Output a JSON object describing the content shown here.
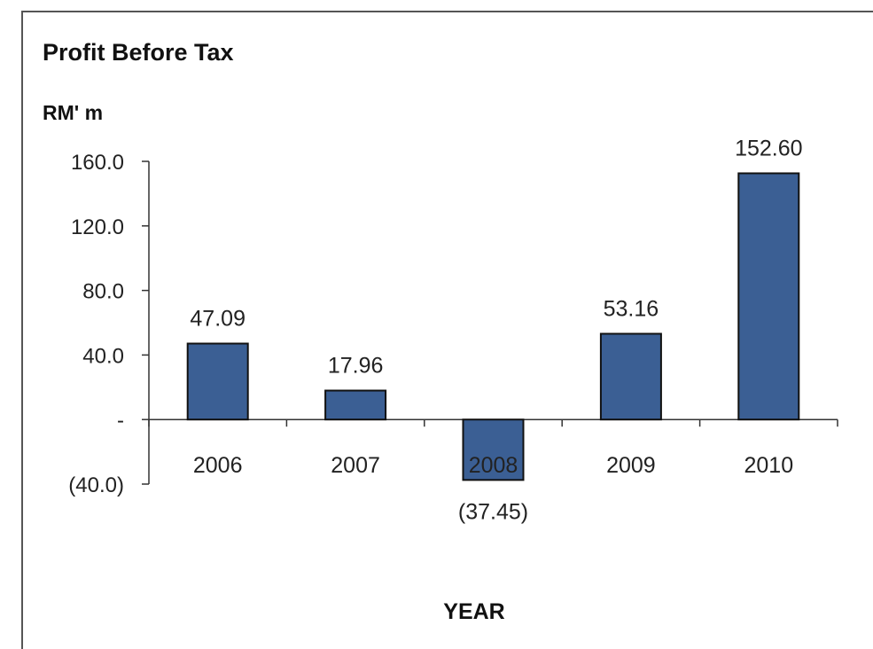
{
  "chart_data": {
    "type": "bar",
    "title": "Profit Before Tax",
    "unit_label": "RM' m",
    "xlabel": "YEAR",
    "ylabel": "",
    "categories": [
      "2006",
      "2007",
      "2008",
      "2009",
      "2010"
    ],
    "values": [
      47.09,
      17.96,
      -37.45,
      53.16,
      152.6
    ],
    "data_labels": [
      "47.09",
      "17.96",
      "(37.45)",
      "53.16",
      "152.60"
    ],
    "y_ticks": [
      {
        "value": 160,
        "label": "160.0"
      },
      {
        "value": 120,
        "label": "120.0"
      },
      {
        "value": 80,
        "label": "80.0"
      },
      {
        "value": 40,
        "label": "40.0"
      },
      {
        "value": 0,
        "label": "-"
      },
      {
        "value": -40,
        "label": "(40.0)"
      }
    ],
    "ylim": [
      -40,
      160
    ],
    "grid": false,
    "legend": "none",
    "bar_color": "#3b5f94",
    "bar_edge_color": "#111111"
  }
}
